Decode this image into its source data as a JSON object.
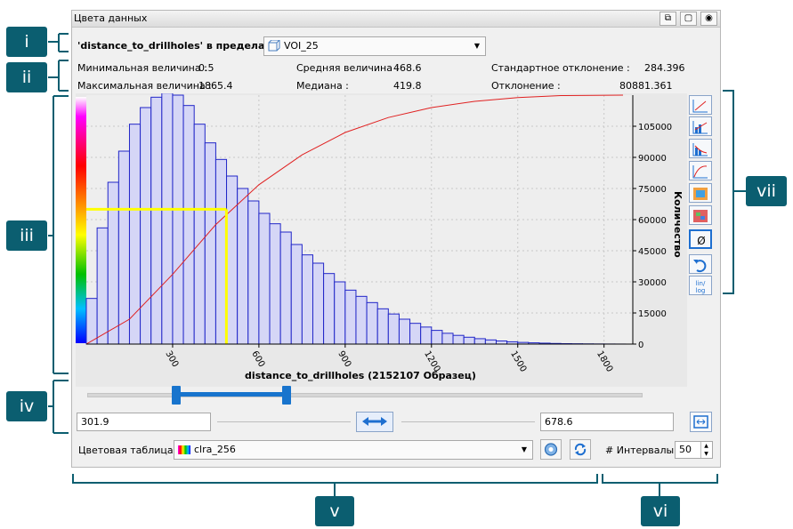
{
  "window": {
    "title": "Цвета данных"
  },
  "callouts": [
    "i",
    "ii",
    "iii",
    "iv",
    "v",
    "vi",
    "vii"
  ],
  "header": {
    "variable_label": "'distance_to_drillholes' в пределах",
    "voi_value": "VOI_25"
  },
  "stats": {
    "min_label": "Минимальная величина :",
    "min_value": "0.5",
    "max_label": "Максимальная величина :",
    "max_value": "1865.4",
    "mean_label": "Средняя величина :",
    "mean_value": "468.6",
    "median_label": "Медиана :",
    "median_value": "419.8",
    "std_label": "Стандартное отклонение :",
    "std_value": "284.396",
    "dev_label": "Отклонение :",
    "dev_value": "80881.361"
  },
  "range": {
    "low": "301.9",
    "high": "678.6",
    "low_fraction": 0.16,
    "high_fraction": 0.36
  },
  "colour_table": {
    "label": "Цветовая таблица :",
    "value": "clra_256"
  },
  "intervals": {
    "label": "# Интервалы:",
    "value": "50"
  },
  "side_tools": [
    "chart-linear-icon",
    "chart-cumulative-icon",
    "chart-stacked-icon",
    "chart-curve-icon",
    "colour-map-icon",
    "colour-grid-icon",
    "null-values-icon",
    "reset-icon",
    "lin-log-icon"
  ],
  "chart_data": {
    "type": "bar",
    "title": "",
    "xlabel": "distance_to_drillholes (2152107 Образец)",
    "ylabel": "Количество",
    "xlim": [
      0,
      1900
    ],
    "ylim": [
      0,
      120000
    ],
    "x_ticks": [
      300,
      600,
      900,
      1200,
      1500,
      1800
    ],
    "y_ticks": [
      0,
      15000,
      30000,
      45000,
      60000,
      75000,
      90000,
      105000
    ],
    "bin_width": 37.5,
    "x": [
      0,
      37.5,
      75,
      112.5,
      150,
      187.5,
      225,
      262.5,
      300,
      337.5,
      375,
      412.5,
      450,
      487.5,
      525,
      562.5,
      600,
      637.5,
      675,
      712.5,
      750,
      787.5,
      825,
      862.5,
      900,
      937.5,
      975,
      1012.5,
      1050,
      1087.5,
      1125,
      1162.5,
      1200,
      1237.5,
      1275,
      1312.5,
      1350,
      1387.5,
      1425,
      1462.5,
      1500,
      1537.5,
      1575,
      1612.5,
      1650,
      1687.5,
      1725,
      1762.5,
      1800,
      1837.5
    ],
    "values": [
      22000,
      56000,
      78000,
      93000,
      106000,
      114000,
      119000,
      121000,
      120000,
      115000,
      106000,
      97000,
      89000,
      81000,
      75000,
      69000,
      63000,
      58000,
      54000,
      48000,
      43000,
      39000,
      34000,
      30000,
      26000,
      23000,
      20000,
      17000,
      14500,
      12000,
      10000,
      8200,
      6600,
      5200,
      4200,
      3300,
      2600,
      2000,
      1500,
      1100,
      800,
      600,
      450,
      300,
      200,
      150,
      100,
      60,
      40,
      20
    ],
    "cumulative": {
      "x": [
        0,
        150,
        300,
        450,
        600,
        750,
        900,
        1050,
        1200,
        1350,
        1500,
        1650,
        1866
      ],
      "y_fraction": [
        0,
        0.1,
        0.28,
        0.48,
        0.64,
        0.76,
        0.85,
        0.91,
        0.95,
        0.975,
        0.99,
        0.998,
        1
      ]
    },
    "marker": {
      "x": 487,
      "y": 65000
    },
    "grid": true,
    "colors": {
      "bar_fill": "#d5d6f6",
      "bar_edge": "#2126c8",
      "curve": "#e02020",
      "marker": "#ffff00"
    }
  },
  "colors": {
    "callout": "#0b5e70",
    "slider": "#1874cd",
    "panel": "#f0f0f0",
    "plot_bg": "#ececec"
  }
}
